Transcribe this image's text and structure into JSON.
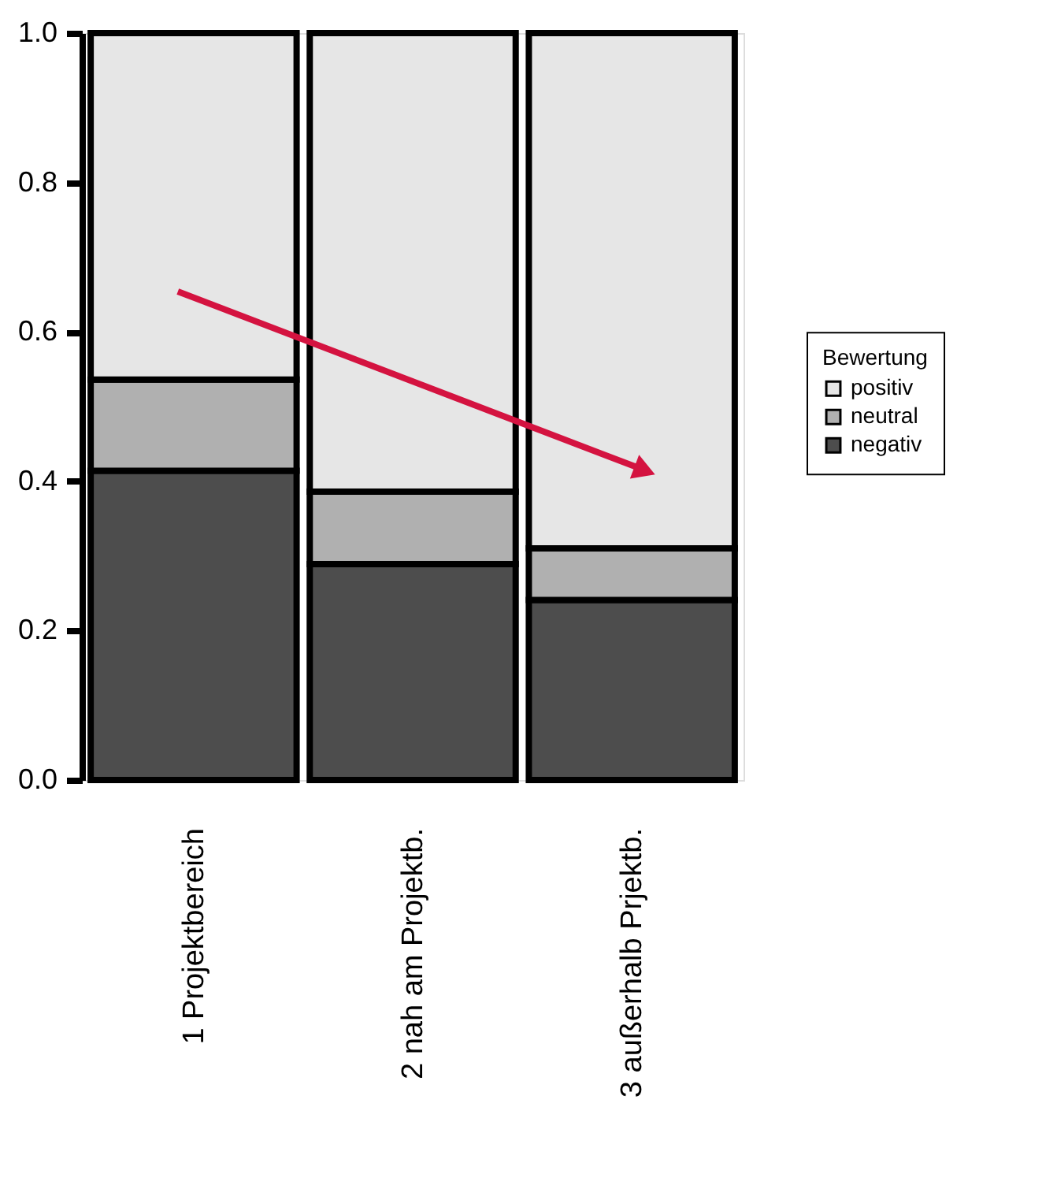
{
  "chart_data": {
    "type": "bar",
    "stacked": true,
    "categories": [
      "1 Projektbereich",
      "2 nah am Projektb.",
      "3 außerhalb Prjektb."
    ],
    "series": [
      {
        "name": "negativ",
        "color": "#4d4d4d",
        "values": [
          0.414,
          0.289,
          0.241
        ]
      },
      {
        "name": "neutral",
        "color": "#b0b0b0",
        "values": [
          0.122,
          0.097,
          0.069
        ]
      },
      {
        "name": "positiv",
        "color": "#e6e6e6",
        "values": [
          0.464,
          0.614,
          0.69
        ]
      }
    ],
    "legend_title": "Bewertung",
    "legend": "right",
    "grid": false,
    "ylim": [
      0,
      1
    ],
    "yticks": [
      {
        "value": 0,
        "label": "0.0"
      },
      {
        "value": 0.2,
        "label": "0.2"
      },
      {
        "value": 0.4,
        "label": "0.4"
      },
      {
        "value": 0.6,
        "label": "0.6"
      },
      {
        "value": 0.8,
        "label": "0.8"
      },
      {
        "value": 1,
        "label": "1.0"
      }
    ]
  }
}
